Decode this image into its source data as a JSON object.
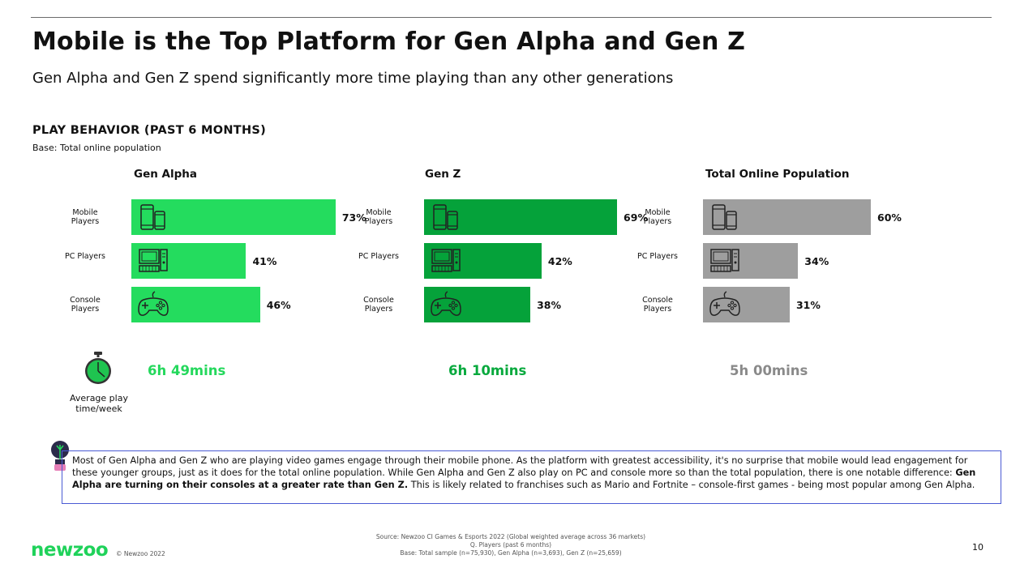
{
  "title": "Mobile is the Top Platform for Gen Alpha and Gen Z",
  "subtitle": "Gen Alpha and Gen Z spend significantly more time playing than any other generations",
  "section_title": "PLAY BEHAVIOR (PAST 6 MONTHS)",
  "base_note": "Base: Total online population",
  "colors": {
    "gen_alpha": "#24dc5e",
    "gen_z": "#05a23a",
    "total": "#9e9e9e"
  },
  "icons": [
    "mobile-phones-icon",
    "pc-computer-icon",
    "gamepad-icon",
    "stopwatch-icon",
    "lightbulb-icon"
  ],
  "chart_data": [
    {
      "type": "bar",
      "title": "Gen Alpha",
      "categories": [
        "Mobile Players",
        "PC Players",
        "Console Players"
      ],
      "values": [
        73,
        41,
        46
      ],
      "value_labels": [
        "73%",
        "41%",
        "46%"
      ],
      "unit": "%",
      "xlim": [
        0,
        100
      ],
      "average_play_time": "6h 49mins"
    },
    {
      "type": "bar",
      "title": "Gen Z",
      "categories": [
        "Mobile Players",
        "PC Players",
        "Console Players"
      ],
      "values": [
        69,
        42,
        38
      ],
      "value_labels": [
        "69%",
        "42%",
        "38%"
      ],
      "unit": "%",
      "xlim": [
        0,
        100
      ],
      "average_play_time": "6h 10mins"
    },
    {
      "type": "bar",
      "title": "Total Online Population",
      "categories": [
        "Mobile Players",
        "PC Players",
        "Console Players"
      ],
      "values": [
        60,
        34,
        31
      ],
      "value_labels": [
        "60%",
        "34%",
        "31%"
      ],
      "unit": "%",
      "xlim": [
        0,
        100
      ],
      "average_play_time": "5h 00mins"
    }
  ],
  "avg_label": "Average play time/week",
  "callout": {
    "before": "Most of Gen Alpha and Gen Z who are playing video games engage through their mobile phone. As the platform with greatest accessibility, it's no surprise that mobile would lead engagement for these younger groups, just as it does for the total online population. While Gen Alpha and Gen Z also play on PC and console more so than the total population, there is one notable difference: ",
    "bold": "Gen Alpha are turning on their consoles at a greater rate than Gen Z.",
    "after": " This is likely related to franchises such as Mario and Fortnite – console-first games - being most popular among Gen Alpha."
  },
  "footer": {
    "logo": "newzoo",
    "copyright": "© Newzoo 2022",
    "source_lines": [
      "Source: Newzoo CI Games & Esports 2022 (Global weighted average across 36 markets)",
      "Q. Players (past 6 months)",
      "Base: Total sample (n=75,930), Gen Alpha (n=3,693), Gen Z (n=25,659)"
    ],
    "page_number": "10"
  }
}
